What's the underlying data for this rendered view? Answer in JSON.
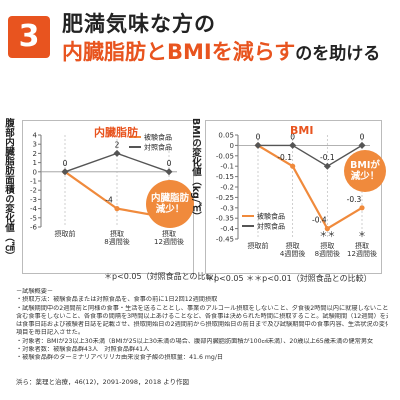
{
  "header": {
    "badge": "3",
    "title_line1": "肥満気味な方の",
    "title_line2_highlight": "内臓脂肪とBMIを減らす",
    "title_line2_rest": "のを助ける"
  },
  "colors": {
    "accent": "#e8541f",
    "test_series": "#f08a3c",
    "control_series": "#555555"
  },
  "fat_chart": {
    "title_tag": "内臓脂肪",
    "ylabel": "腹部内臓脂肪面積の変化値（㎠）",
    "legend": [
      "被験食品",
      "対照食品"
    ],
    "bubble": "内臓脂肪 減少！",
    "footnote": "＊p<0.05（対照食品との比較）"
  },
  "bmi_chart": {
    "title_tag": "BMI",
    "ylabel": "BMIの変化値（kg/㎡）",
    "legend": [
      "被験食品",
      "対照食品"
    ],
    "bubble": "BMIが 減少！",
    "footnote": "＊p<0.05 ＊＊p<0.01（対照食品との比較）"
  },
  "chart_data": [
    {
      "type": "line",
      "title": "内臓脂肪",
      "xlabel": "",
      "ylabel": "腹部内臓脂肪面積の変化値（㎠）",
      "categories": [
        "摂取前",
        "摂取8週間後",
        "摂取12週間後"
      ],
      "ylim": [
        -6,
        4
      ],
      "yticks": [
        4,
        3,
        2,
        1,
        0,
        -1,
        -2,
        -3,
        -4,
        -5,
        -6
      ],
      "series": [
        {
          "name": "被験食品",
          "values": [
            0,
            -4,
            -5
          ],
          "labels": [
            "0",
            "-4",
            "-5"
          ]
        },
        {
          "name": "対照食品",
          "values": [
            0,
            2,
            0
          ],
          "labels": [
            "0",
            "2",
            "0"
          ]
        }
      ],
      "significance": [
        "",
        "",
        "＊"
      ],
      "legend_position": "top-right"
    },
    {
      "type": "line",
      "title": "BMI",
      "xlabel": "",
      "ylabel": "BMIの変化値（kg/㎡）",
      "categories": [
        "摂取前",
        "摂取4週間後",
        "摂取8週間後",
        "摂取12週間後"
      ],
      "ylim": [
        -0.45,
        0.05
      ],
      "yticks": [
        0.05,
        0,
        -0.05,
        -0.1,
        -0.15,
        -0.2,
        -0.25,
        -0.3,
        -0.35,
        -0.4,
        -0.45
      ],
      "series": [
        {
          "name": "被験食品",
          "values": [
            0,
            -0.1,
            -0.4,
            -0.3
          ],
          "labels": [
            "0",
            "-0.1",
            "-0.4",
            "-0.3"
          ]
        },
        {
          "name": "対照食品",
          "values": [
            0,
            0,
            -0.1,
            0
          ],
          "labels": [
            "0",
            "0",
            "-0.1",
            "0"
          ]
        }
      ],
      "significance": [
        "",
        "",
        "＊＊",
        "＊"
      ],
      "legend_position": "bottom-left"
    }
  ],
  "notes": {
    "heading": "－試験概要－",
    "lines": [
      "・摂取方法：被験食品または対照食品を、食事の前に1日2回12週間摂取",
      "・試験期間中の2週間前と同様の食事・生活を送ることとし、事業のアルコール摂取をしないこと、夕食後2時間以内に就寝しないこと、22時以降は間食も",
      "含む食事をしないこと、各食事の間隔を3時間以上あけることなど、各食事は決められた時間に摂取すること。試験期間（12週間）を通じての注意事項として被験者に指導した。なお、被験者に",
      "は食事日誌および被験者日誌を記載させ、摂取開始日の2週間前から摂取開始日の前日まで及び試験期間中の食事内容、生活状況の変化、有害事象の有無などについて被験者の服薬",
      "項目を毎日記入させた。",
      "・対象者：BMIが23以上30未満（BMIが25以上30未満の場合、腹部内臓脂肪面積が100㎠未満）、20歳以上65歳未満の健常男女",
      "・対象者数：被験食品群43人　対照食品群41人",
      "・被験食品群のターミナリアベリリカ由来没食子酸の摂取量：41.6 mg/日"
    ]
  },
  "reference": "浜ら：薬理と治療，46(12)，2091-2098，2018 より作図"
}
